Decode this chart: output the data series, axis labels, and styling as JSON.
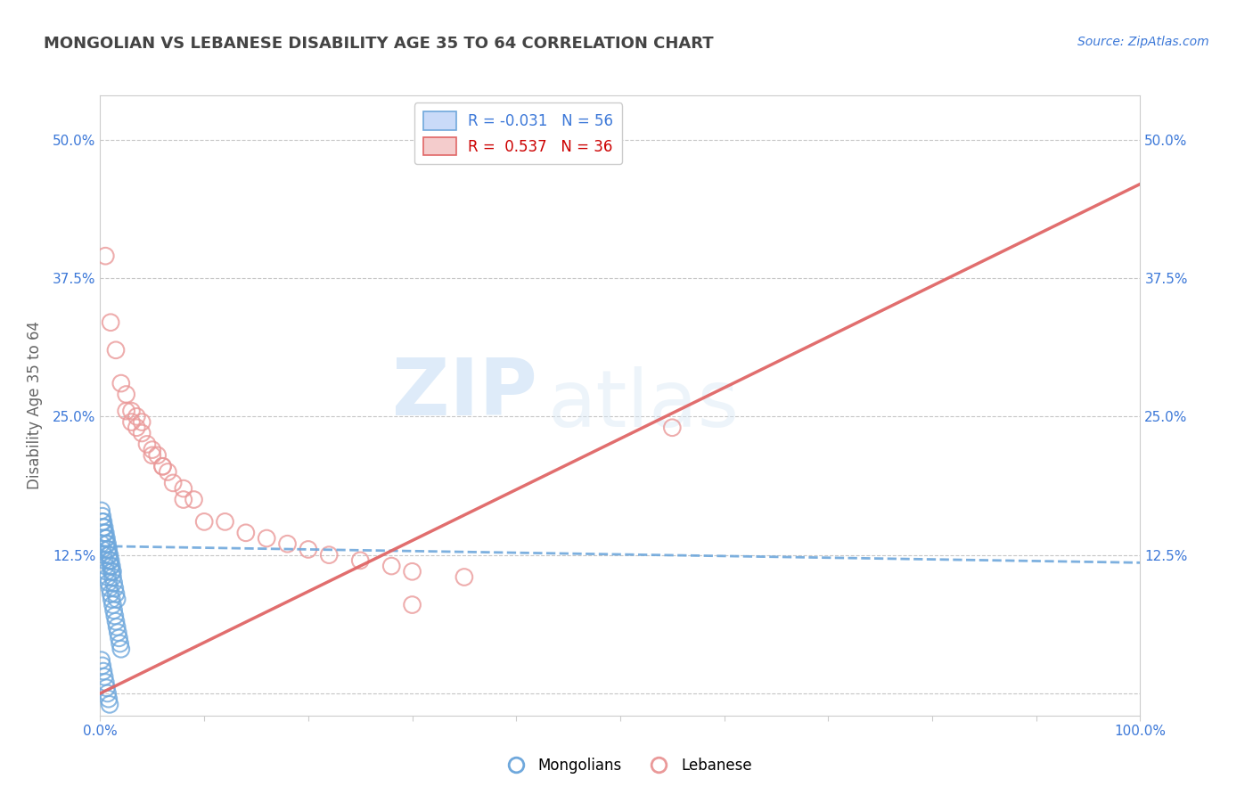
{
  "title": "MONGOLIAN VS LEBANESE DISABILITY AGE 35 TO 64 CORRELATION CHART",
  "source": "Source: ZipAtlas.com",
  "ylabel": "Disability Age 35 to 64",
  "mongolian_R": -0.031,
  "mongolian_N": 56,
  "lebanese_R": 0.537,
  "lebanese_N": 36,
  "xlim": [
    0,
    1.0
  ],
  "ylim": [
    -0.02,
    0.54
  ],
  "x_ticks": [
    0.0,
    0.1,
    0.2,
    0.3,
    0.4,
    0.5,
    0.6,
    0.7,
    0.8,
    0.9,
    1.0
  ],
  "x_tick_labels": [
    "0.0%",
    "",
    "",
    "",
    "",
    "",
    "",
    "",
    "",
    "",
    "100.0%"
  ],
  "y_ticks": [
    0.0,
    0.125,
    0.25,
    0.375,
    0.5
  ],
  "y_tick_labels": [
    "",
    "12.5%",
    "25.0%",
    "37.5%",
    "50.0%"
  ],
  "mongolian_color": "#6fa8dc",
  "lebanese_color": "#ea9999",
  "mongolian_line_color": "#6fa8dc",
  "lebanese_line_color": "#e06666",
  "watermark_zip": "ZIP",
  "watermark_atlas": "atlas",
  "mongolian_x": [
    0.001,
    0.002,
    0.003,
    0.004,
    0.005,
    0.006,
    0.007,
    0.008,
    0.009,
    0.01,
    0.011,
    0.012,
    0.013,
    0.014,
    0.015,
    0.016,
    0.017,
    0.018,
    0.019,
    0.02,
    0.002,
    0.003,
    0.004,
    0.005,
    0.006,
    0.007,
    0.008,
    0.009,
    0.01,
    0.011,
    0.012,
    0.013,
    0.014,
    0.015,
    0.016,
    0.001,
    0.002,
    0.003,
    0.004,
    0.005,
    0.006,
    0.007,
    0.008,
    0.009,
    0.01,
    0.011,
    0.012,
    0.001,
    0.002,
    0.003,
    0.004,
    0.005,
    0.006,
    0.007,
    0.008,
    0.009
  ],
  "mongolian_y": [
    0.135,
    0.13,
    0.125,
    0.12,
    0.115,
    0.11,
    0.105,
    0.1,
    0.095,
    0.09,
    0.085,
    0.08,
    0.075,
    0.07,
    0.065,
    0.06,
    0.055,
    0.05,
    0.045,
    0.04,
    0.155,
    0.15,
    0.145,
    0.14,
    0.135,
    0.13,
    0.125,
    0.12,
    0.115,
    0.11,
    0.105,
    0.1,
    0.095,
    0.09,
    0.085,
    0.165,
    0.16,
    0.155,
    0.15,
    0.145,
    0.14,
    0.135,
    0.13,
    0.125,
    0.12,
    0.115,
    0.11,
    0.03,
    0.025,
    0.02,
    0.015,
    0.01,
    0.005,
    0.0,
    -0.005,
    -0.01
  ],
  "lebanese_x": [
    0.005,
    0.01,
    0.015,
    0.02,
    0.025,
    0.03,
    0.035,
    0.04,
    0.05,
    0.06,
    0.07,
    0.08,
    0.09,
    0.1,
    0.12,
    0.14,
    0.16,
    0.18,
    0.2,
    0.22,
    0.25,
    0.28,
    0.3,
    0.35,
    0.55,
    0.025,
    0.03,
    0.035,
    0.04,
    0.045,
    0.05,
    0.055,
    0.06,
    0.065,
    0.08,
    0.3
  ],
  "lebanese_y": [
    0.395,
    0.335,
    0.31,
    0.28,
    0.27,
    0.255,
    0.25,
    0.245,
    0.215,
    0.205,
    0.19,
    0.185,
    0.175,
    0.155,
    0.155,
    0.145,
    0.14,
    0.135,
    0.13,
    0.125,
    0.12,
    0.115,
    0.11,
    0.105,
    0.24,
    0.255,
    0.245,
    0.24,
    0.235,
    0.225,
    0.22,
    0.215,
    0.205,
    0.2,
    0.175,
    0.08
  ],
  "mon_line_x0": 0.0,
  "mon_line_x1": 1.0,
  "mon_line_y0": 0.133,
  "mon_line_y1": 0.118,
  "leb_line_x0": 0.0,
  "leb_line_x1": 1.0,
  "leb_line_y0": 0.0,
  "leb_line_y1": 0.46
}
